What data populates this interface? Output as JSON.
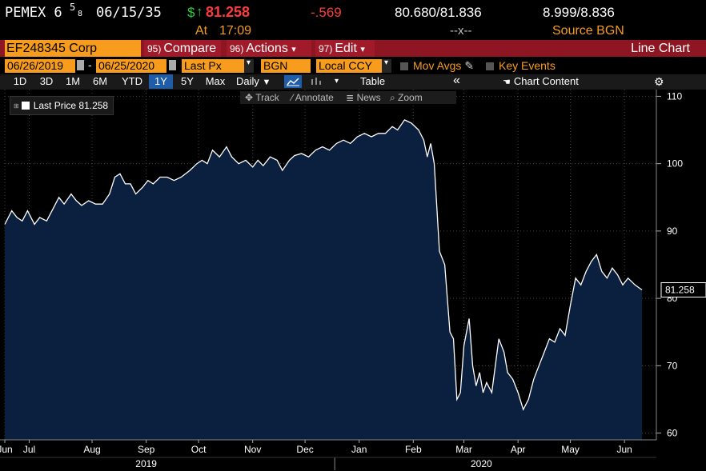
{
  "header": {
    "ticker": "PEMEX 6",
    "coupon_num": "5",
    "coupon_den": "8",
    "maturity": "06/15/35",
    "currency_sign": "$",
    "arrow": "↑",
    "price": "81.258",
    "change": "-.569",
    "at_label": "At",
    "time": "17:09",
    "bid_ask": "80.680/81.836",
    "bid_ask_sub": "--x--",
    "yields": "8.999/8.836",
    "source": "Source BGN"
  },
  "toolbar": {
    "security": "EF248345 Corp",
    "compare_num": "95)",
    "compare": "Compare",
    "actions_num": "96)",
    "actions": "Actions",
    "edit_num": "97)",
    "edit": "Edit",
    "dropdown_arrow": "▾",
    "title": "Line Chart"
  },
  "controls": {
    "start_date": "06/26/2019",
    "end_date": "06/25/2020",
    "separator": "-",
    "field": "Last Px",
    "source": "BGN",
    "ccy": "Local CCY",
    "mov_avgs": "Mov Avgs",
    "key_events": "Key Events"
  },
  "periods": [
    "1D",
    "3D",
    "1M",
    "6M",
    "YTD",
    "1Y",
    "5Y",
    "Max"
  ],
  "selected_period": "1Y",
  "frequency": "Daily",
  "frequency_arrow": "▼",
  "table_label": "Table",
  "collapse": "«",
  "chart_content": "Chart Content",
  "tools": {
    "track": "Track",
    "annotate": "Annotate",
    "news": "News",
    "zoom": "Zoom"
  },
  "colors": {
    "accent_orange": "#f79c1c",
    "price_red": "#ff3a3a",
    "bar_red": "#a11a2a",
    "area_fill": "#0b1f3f",
    "selected_tab": "#1f5da8"
  },
  "chart_data": {
    "type": "area",
    "legend_label": "Last Price",
    "legend_value": "81.258",
    "last_value": 81.258,
    "last_label": "81.258",
    "ylim": [
      59,
      111
    ],
    "yticks": [
      60,
      70,
      80,
      90,
      100,
      110
    ],
    "xlim": [
      "2019-06-26",
      "2020-06-25"
    ],
    "month_labels": [
      {
        "label": "Jun",
        "date": "2019-06-26"
      },
      {
        "label": "Jul",
        "date": "2019-07-10"
      },
      {
        "label": "Aug",
        "date": "2019-08-15"
      },
      {
        "label": "Sep",
        "date": "2019-09-15"
      },
      {
        "label": "Oct",
        "date": "2019-10-15"
      },
      {
        "label": "Nov",
        "date": "2019-11-15"
      },
      {
        "label": "Dec",
        "date": "2019-12-15"
      },
      {
        "label": "Jan",
        "date": "2020-01-15"
      },
      {
        "label": "Feb",
        "date": "2020-02-15"
      },
      {
        "label": "Mar",
        "date": "2020-03-15"
      },
      {
        "label": "Apr",
        "date": "2020-04-15"
      },
      {
        "label": "May",
        "date": "2020-05-15"
      },
      {
        "label": "Jun",
        "date": "2020-06-15"
      }
    ],
    "year_labels": [
      {
        "label": "2019",
        "date": "2019-09-15"
      },
      {
        "label": "2020",
        "date": "2020-03-25"
      }
    ],
    "year_divider": "2020-01-01",
    "series": [
      {
        "points": [
          [
            "2019-06-26",
            91.0
          ],
          [
            "2019-06-30",
            93.0
          ],
          [
            "2019-07-03",
            92.0
          ],
          [
            "2019-07-06",
            91.5
          ],
          [
            "2019-07-09",
            93.0
          ],
          [
            "2019-07-13",
            91.0
          ],
          [
            "2019-07-16",
            92.0
          ],
          [
            "2019-07-20",
            91.5
          ],
          [
            "2019-07-24",
            93.5
          ],
          [
            "2019-07-27",
            95.0
          ],
          [
            "2019-07-30",
            94.0
          ],
          [
            "2019-08-03",
            95.5
          ],
          [
            "2019-08-06",
            94.5
          ],
          [
            "2019-08-09",
            93.8
          ],
          [
            "2019-08-13",
            94.5
          ],
          [
            "2019-08-17",
            94.0
          ],
          [
            "2019-08-21",
            94.0
          ],
          [
            "2019-08-25",
            95.5
          ],
          [
            "2019-08-28",
            98.0
          ],
          [
            "2019-08-31",
            98.5
          ],
          [
            "2019-09-03",
            97.0
          ],
          [
            "2019-09-06",
            97.0
          ],
          [
            "2019-09-09",
            95.5
          ],
          [
            "2019-09-13",
            96.5
          ],
          [
            "2019-09-16",
            97.5
          ],
          [
            "2019-09-19",
            97.0
          ],
          [
            "2019-09-23",
            98.0
          ],
          [
            "2019-09-27",
            98.0
          ],
          [
            "2019-10-01",
            97.5
          ],
          [
            "2019-10-05",
            98.0
          ],
          [
            "2019-10-10",
            99.0
          ],
          [
            "2019-10-14",
            100.0
          ],
          [
            "2019-10-17",
            100.5
          ],
          [
            "2019-10-20",
            100.0
          ],
          [
            "2019-10-23",
            102.0
          ],
          [
            "2019-10-27",
            101.0
          ],
          [
            "2019-10-31",
            102.5
          ],
          [
            "2019-11-03",
            101.0
          ],
          [
            "2019-11-07",
            100.0
          ],
          [
            "2019-11-11",
            100.5
          ],
          [
            "2019-11-15",
            99.5
          ],
          [
            "2019-11-18",
            100.5
          ],
          [
            "2019-11-21",
            99.7
          ],
          [
            "2019-11-25",
            101.0
          ],
          [
            "2019-11-29",
            100.5
          ],
          [
            "2019-12-02",
            99.0
          ],
          [
            "2019-12-06",
            100.5
          ],
          [
            "2019-12-09",
            101.2
          ],
          [
            "2019-12-13",
            101.5
          ],
          [
            "2019-12-17",
            101.0
          ],
          [
            "2019-12-21",
            102.0
          ],
          [
            "2019-12-25",
            102.5
          ],
          [
            "2019-12-29",
            102.0
          ],
          [
            "2020-01-02",
            103.0
          ],
          [
            "2020-01-06",
            103.5
          ],
          [
            "2020-01-10",
            103.0
          ],
          [
            "2020-01-14",
            104.0
          ],
          [
            "2020-01-18",
            104.5
          ],
          [
            "2020-01-22",
            104.0
          ],
          [
            "2020-01-26",
            104.5
          ],
          [
            "2020-01-30",
            104.5
          ],
          [
            "2020-02-03",
            105.5
          ],
          [
            "2020-02-06",
            105.0
          ],
          [
            "2020-02-10",
            106.5
          ],
          [
            "2020-02-14",
            106.0
          ],
          [
            "2020-02-18",
            105.0
          ],
          [
            "2020-02-21",
            103.5
          ],
          [
            "2020-02-23",
            101.0
          ],
          [
            "2020-02-25",
            103.0
          ],
          [
            "2020-02-27",
            100.0
          ],
          [
            "2020-03-01",
            87.0
          ],
          [
            "2020-03-04",
            85.0
          ],
          [
            "2020-03-07",
            75.0
          ],
          [
            "2020-03-09",
            74.0
          ],
          [
            "2020-03-11",
            65.0
          ],
          [
            "2020-03-13",
            66.0
          ],
          [
            "2020-03-15",
            73.0
          ],
          [
            "2020-03-18",
            77.0
          ],
          [
            "2020-03-20",
            70.0
          ],
          [
            "2020-03-22",
            67.0
          ],
          [
            "2020-03-24",
            69.0
          ],
          [
            "2020-03-26",
            66.0
          ],
          [
            "2020-03-28",
            67.5
          ],
          [
            "2020-03-31",
            66.0
          ],
          [
            "2020-04-02",
            70.0
          ],
          [
            "2020-04-04",
            74.0
          ],
          [
            "2020-04-07",
            72.0
          ],
          [
            "2020-04-09",
            69.0
          ],
          [
            "2020-04-12",
            68.0
          ],
          [
            "2020-04-15",
            66.0
          ],
          [
            "2020-04-18",
            63.5
          ],
          [
            "2020-04-21",
            65.0
          ],
          [
            "2020-04-24",
            68.0
          ],
          [
            "2020-04-27",
            70.0
          ],
          [
            "2020-04-30",
            72.0
          ],
          [
            "2020-05-03",
            74.0
          ],
          [
            "2020-05-06",
            73.5
          ],
          [
            "2020-05-09",
            75.5
          ],
          [
            "2020-05-12",
            74.5
          ],
          [
            "2020-05-15",
            79.0
          ],
          [
            "2020-05-18",
            83.0
          ],
          [
            "2020-05-21",
            82.0
          ],
          [
            "2020-05-24",
            84.0
          ],
          [
            "2020-05-27",
            85.5
          ],
          [
            "2020-05-30",
            86.5
          ],
          [
            "2020-06-02",
            84.0
          ],
          [
            "2020-06-05",
            83.0
          ],
          [
            "2020-06-08",
            84.5
          ],
          [
            "2020-06-11",
            83.5
          ],
          [
            "2020-06-14",
            82.0
          ],
          [
            "2020-06-17",
            83.0
          ],
          [
            "2020-06-21",
            82.0
          ],
          [
            "2020-06-25",
            81.258
          ]
        ]
      }
    ]
  }
}
